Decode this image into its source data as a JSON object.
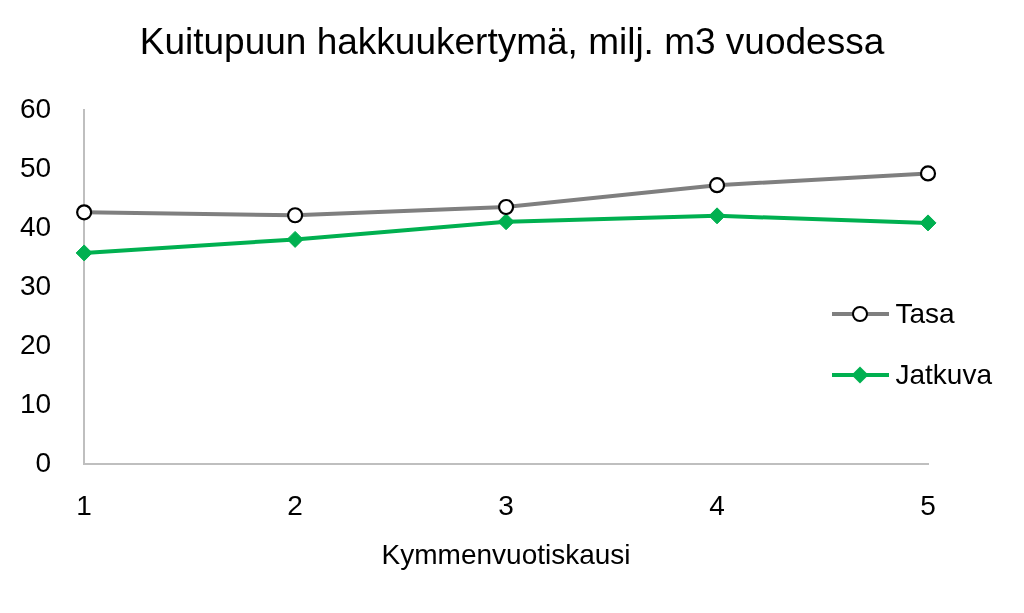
{
  "chart_data": {
    "type": "line",
    "title": "Kuitupuun hakkuukertymä, milj. m3 vuodessa",
    "xlabel": "Kymmenvuotiskausi",
    "categories": [
      "1",
      "2",
      "3",
      "4",
      "5"
    ],
    "series": [
      {
        "name": "Tasa",
        "color": "#7f7f7f",
        "marker": "circle",
        "values": [
          42.7,
          42.2,
          43.6,
          47.3,
          49.3
        ]
      },
      {
        "name": "Jatkuva",
        "color": "#00b050",
        "marker": "diamond",
        "values": [
          35.8,
          38.1,
          41.1,
          42.1,
          40.9
        ]
      }
    ],
    "ylim": [
      0,
      60
    ],
    "yticks": [
      0,
      10,
      20,
      30,
      40,
      50,
      60
    ],
    "grid": false,
    "legend": "right",
    "line_style": "solid"
  }
}
